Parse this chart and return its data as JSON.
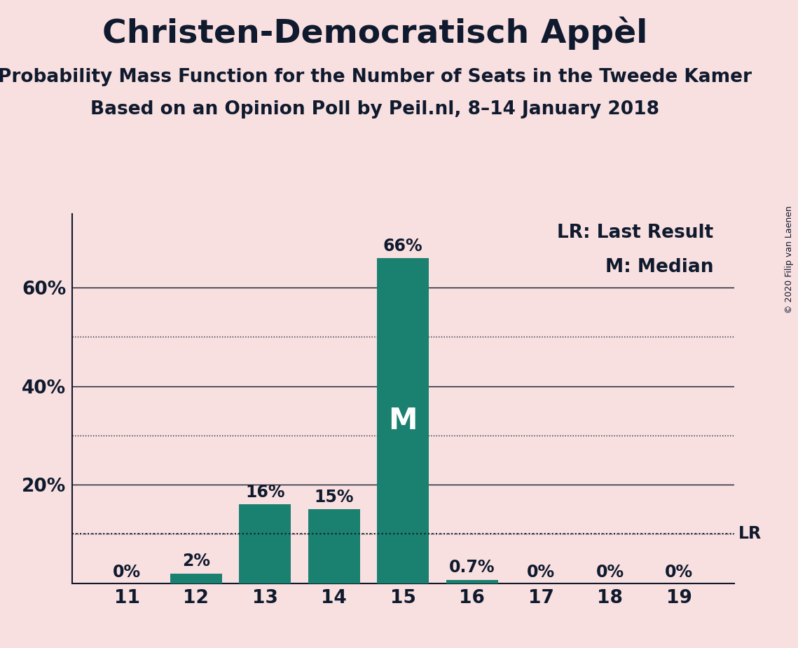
{
  "title": "Christen-Democratisch Appèl",
  "subtitle1": "Probability Mass Function for the Number of Seats in the Tweede Kamer",
  "subtitle2": "Based on an Opinion Poll by Peil.nl, 8–14 January 2018",
  "copyright": "© 2020 Filip van Laenen",
  "categories": [
    11,
    12,
    13,
    14,
    15,
    16,
    17,
    18,
    19
  ],
  "values": [
    0.0,
    2.0,
    16.0,
    15.0,
    66.0,
    0.7,
    0.0,
    0.0,
    0.0
  ],
  "labels": [
    "0%",
    "2%",
    "16%",
    "15%",
    "66%",
    "0.7%",
    "0%",
    "0%",
    "0%"
  ],
  "bar_color": "#1a8070",
  "background_color": "#f9e0e0",
  "median_seat": 15,
  "lr_value": 10.0,
  "legend_lr": "LR: Last Result",
  "legend_m": "M: Median",
  "dotted_grid": [
    10,
    30,
    50
  ],
  "solid_grid": [
    20,
    40,
    60
  ],
  "text_color": "#0f1a2e",
  "title_fontsize": 34,
  "subtitle_fontsize": 19,
  "label_fontsize": 17,
  "tick_fontsize": 19,
  "legend_fontsize": 19,
  "copyright_fontsize": 9,
  "ylim_max": 75,
  "xlim_min": 10.2,
  "xlim_max": 19.8
}
